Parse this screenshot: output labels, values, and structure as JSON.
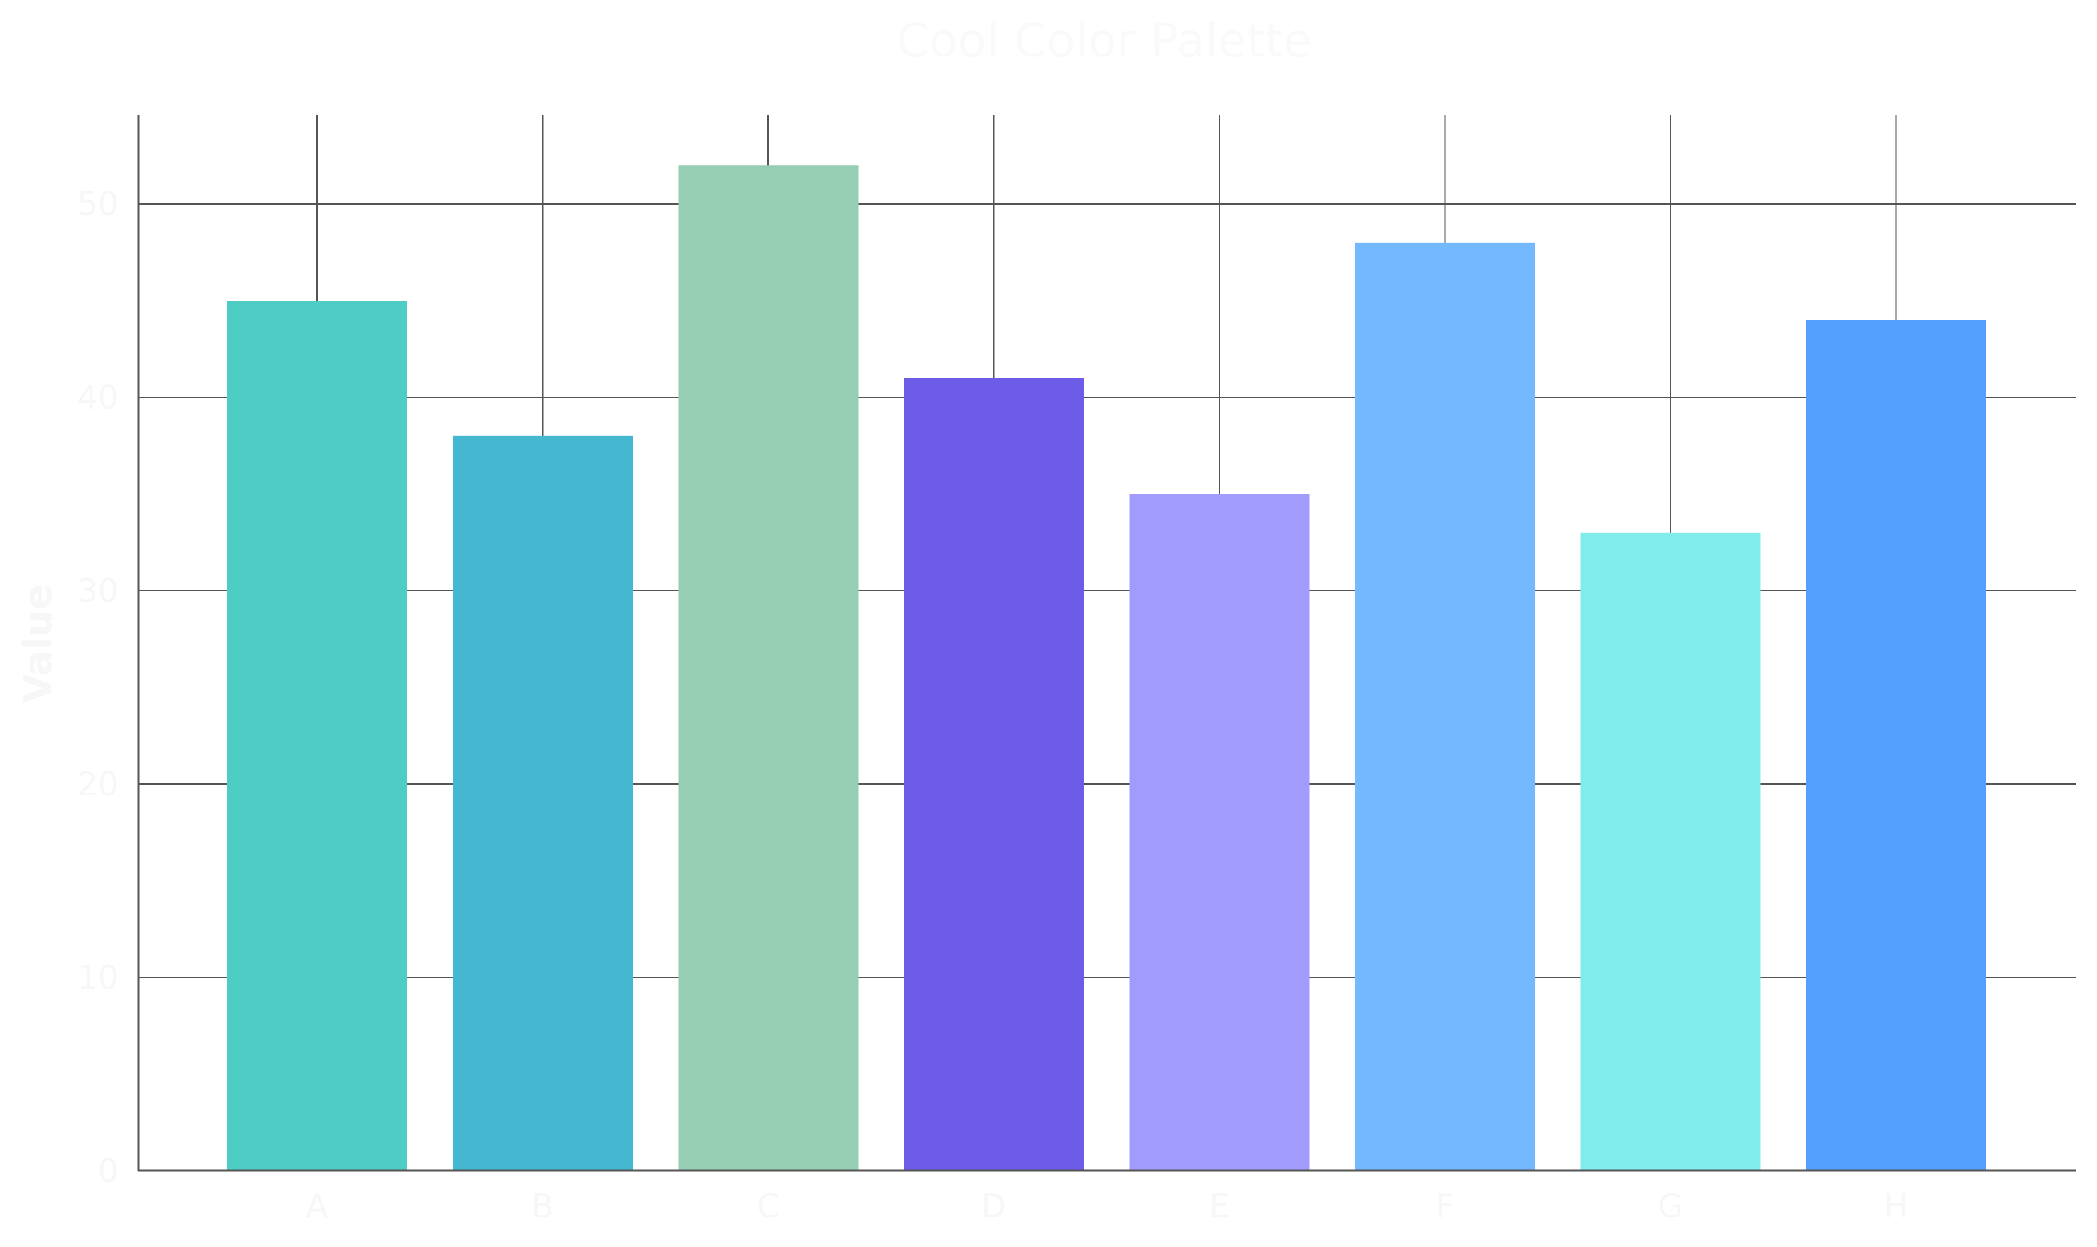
{
  "chart_data": {
    "type": "bar",
    "title": "Cool Color Palette",
    "xlabel": "",
    "ylabel": "Value",
    "categories": [
      "A",
      "B",
      "C",
      "D",
      "E",
      "F",
      "G",
      "H"
    ],
    "values": [
      45,
      38,
      52,
      41,
      35,
      48,
      33,
      44
    ],
    "colors": [
      "#4ecdc4",
      "#45b7d1",
      "#96ceb4",
      "#6c5ce7",
      "#a29bfe",
      "#74b9ff",
      "#81ecec",
      "#54a0ff"
    ],
    "ylim": [
      0,
      54.6
    ],
    "yticks": [
      0,
      10,
      20,
      30,
      40,
      50
    ],
    "grid": true,
    "legend": "none"
  }
}
